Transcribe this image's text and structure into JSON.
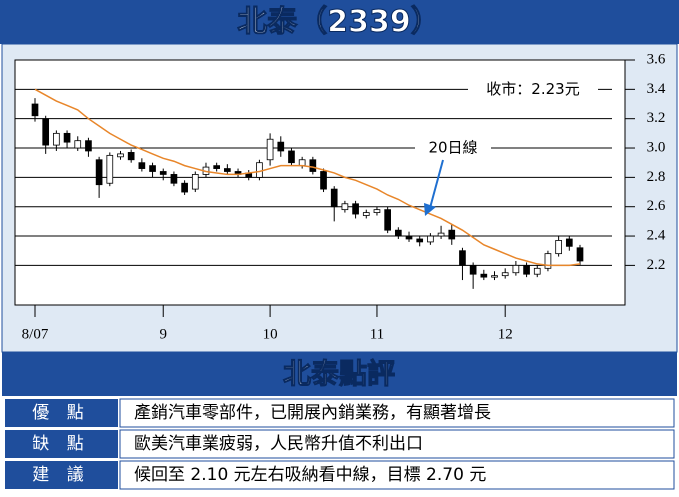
{
  "chart_data": {
    "type": "candlestick",
    "title": "北泰（2339）",
    "categories": [
      "8/07",
      null,
      null,
      null,
      null,
      null,
      null,
      null,
      null,
      null,
      null,
      null,
      "9",
      null,
      null,
      null,
      null,
      null,
      null,
      null,
      null,
      null,
      "10",
      null,
      null,
      null,
      null,
      null,
      null,
      null,
      null,
      null,
      "11",
      null,
      null,
      null,
      null,
      null,
      null,
      null,
      null,
      null,
      null,
      null,
      "12",
      null,
      null,
      null,
      null,
      null,
      null,
      null
    ],
    "open": [
      3.3,
      3.2,
      3.02,
      3.1,
      3.0,
      3.05,
      2.92,
      2.76,
      2.94,
      2.97,
      2.9,
      2.88,
      2.84,
      2.82,
      2.76,
      2.72,
      2.82,
      2.88,
      2.86,
      2.84,
      2.83,
      2.8,
      2.92,
      3.04,
      2.98,
      2.88,
      2.92,
      2.84,
      2.72,
      2.58,
      2.62,
      2.54,
      2.56,
      2.58,
      2.44,
      2.4,
      2.38,
      2.36,
      2.4,
      2.44,
      2.3,
      2.2,
      2.14,
      2.12,
      2.13,
      2.15,
      2.2,
      2.14,
      2.18,
      2.28,
      2.38,
      2.32
    ],
    "high": [
      3.34,
      3.22,
      3.12,
      3.12,
      3.08,
      3.07,
      2.94,
      2.97,
      2.98,
      2.99,
      2.93,
      2.9,
      2.86,
      2.84,
      2.78,
      2.84,
      2.9,
      2.9,
      2.89,
      2.86,
      2.85,
      2.92,
      3.1,
      3.08,
      3.0,
      2.94,
      2.94,
      2.86,
      2.74,
      2.64,
      2.64,
      2.58,
      2.6,
      2.6,
      2.46,
      2.43,
      2.4,
      2.42,
      2.47,
      2.48,
      2.32,
      2.22,
      2.17,
      2.16,
      2.18,
      2.23,
      2.22,
      2.2,
      2.3,
      2.4,
      2.4,
      2.34
    ],
    "low": [
      3.18,
      2.96,
      2.98,
      3.0,
      2.98,
      2.94,
      2.66,
      2.74,
      2.92,
      2.9,
      2.84,
      2.8,
      2.78,
      2.74,
      2.68,
      2.7,
      2.8,
      2.84,
      2.82,
      2.8,
      2.78,
      2.78,
      2.88,
      2.94,
      2.88,
      2.86,
      2.82,
      2.7,
      2.5,
      2.56,
      2.52,
      2.52,
      2.54,
      2.42,
      2.38,
      2.36,
      2.33,
      2.34,
      2.38,
      2.34,
      2.1,
      2.04,
      2.1,
      2.1,
      2.11,
      2.13,
      2.12,
      2.12,
      2.16,
      2.26,
      2.3,
      2.2
    ],
    "close": [
      3.22,
      3.02,
      3.1,
      3.04,
      3.05,
      2.98,
      2.75,
      2.95,
      2.96,
      2.92,
      2.86,
      2.84,
      2.82,
      2.76,
      2.7,
      2.82,
      2.87,
      2.86,
      2.84,
      2.82,
      2.8,
      2.9,
      3.06,
      2.98,
      2.9,
      2.92,
      2.84,
      2.72,
      2.6,
      2.62,
      2.55,
      2.56,
      2.58,
      2.44,
      2.4,
      2.38,
      2.36,
      2.4,
      2.42,
      2.38,
      2.2,
      2.14,
      2.12,
      2.13,
      2.15,
      2.2,
      2.14,
      2.18,
      2.28,
      2.37,
      2.33,
      2.23
    ],
    "series": [
      {
        "name": "20日線",
        "color": "#e8862a",
        "values": [
          3.4,
          3.36,
          3.32,
          3.29,
          3.26,
          3.2,
          3.15,
          3.1,
          3.06,
          3.02,
          2.99,
          2.96,
          2.93,
          2.91,
          2.88,
          2.86,
          2.84,
          2.83,
          2.82,
          2.82,
          2.83,
          2.84,
          2.86,
          2.88,
          2.88,
          2.88,
          2.87,
          2.85,
          2.83,
          2.8,
          2.78,
          2.75,
          2.72,
          2.68,
          2.65,
          2.61,
          2.58,
          2.55,
          2.52,
          2.48,
          2.44,
          2.39,
          2.34,
          2.31,
          2.28,
          2.25,
          2.23,
          2.21,
          2.2,
          2.2,
          2.2,
          2.21
        ]
      }
    ],
    "annotation": "收市：2.23元",
    "ylim": [
      1.93,
      3.6
    ],
    "yticks": [
      3.6,
      3.4,
      3.2,
      {
        "value": 3,
        "label": "3.0"
      },
      2.8,
      2.6,
      2.4,
      2.2
    ],
    "grid": true
  },
  "review": {
    "title": "北泰點評",
    "rows": [
      [
        "優 點",
        "產銷汽車零部件，已開展內銷業務，有顯著增長"
      ],
      [
        "缺 點",
        "歐美汽車業疲弱，人民幣升值不利出口"
      ],
      [
        "建 議",
        "候回至 2.10 元左右吸納看中線，目標 2.70 元"
      ]
    ]
  }
}
